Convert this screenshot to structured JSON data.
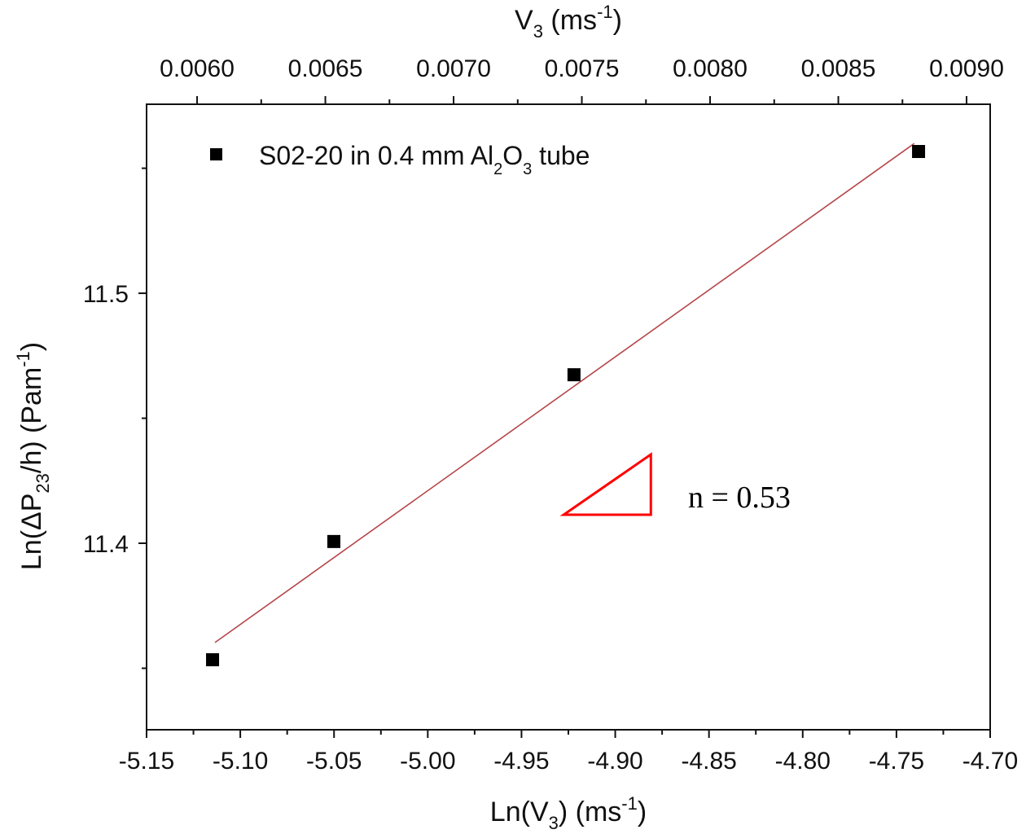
{
  "chart_data": {
    "type": "scatter",
    "xlabel": {
      "main": "Ln(V",
      "sub": "3",
      "rest": ") (ms",
      "sup": "-1",
      "end": ")"
    },
    "ylabel": {
      "main": "Ln(ΔP",
      "sub": "23",
      "rest": "/h) (Pam",
      "sup": "-1",
      "end": ")"
    },
    "x2label": {
      "main": "V",
      "sub": "3",
      "rest": " (ms",
      "sup": "-1",
      "end": ")"
    },
    "xlim": [
      -5.15,
      -4.7
    ],
    "ylim": [
      11.3254,
      11.5756
    ],
    "x2lim": [
      0.005803,
      0.009092
    ],
    "xticks": [
      "-5.15",
      "-5.10",
      "-5.05",
      "-5.00",
      "-4.95",
      "-4.90",
      "-4.85",
      "-4.80",
      "-4.75",
      "-4.70"
    ],
    "yticks": [
      "11.4",
      "11.5"
    ],
    "x2ticks": [
      "0.0060",
      "0.0065",
      "0.0070",
      "0.0075",
      "0.0080",
      "0.0085",
      "0.0090"
    ],
    "legend": {
      "position": "top-left",
      "parts": [
        "S02-20 in 0.4 mm Al",
        "2",
        "O",
        "3",
        " tube"
      ]
    },
    "series": [
      {
        "name": "S02-20 in 0.4 mm Al2O3 tube",
        "x": [
          -5.1148,
          -5.0501,
          -4.922,
          -4.7382
        ],
        "y": [
          11.3534,
          11.4007,
          11.4674,
          11.5567
        ]
      }
    ],
    "fit": {
      "x": [
        -5.1135,
        -4.7405
      ],
      "y": [
        11.3603,
        11.5599
      ],
      "color": "#b5474a"
    },
    "slope_triangle": {
      "x": [
        -4.9275,
        -4.881
      ],
      "y": [
        11.4114,
        11.4355
      ],
      "color": "#ff0000"
    },
    "annotation": "n = 0.53"
  }
}
